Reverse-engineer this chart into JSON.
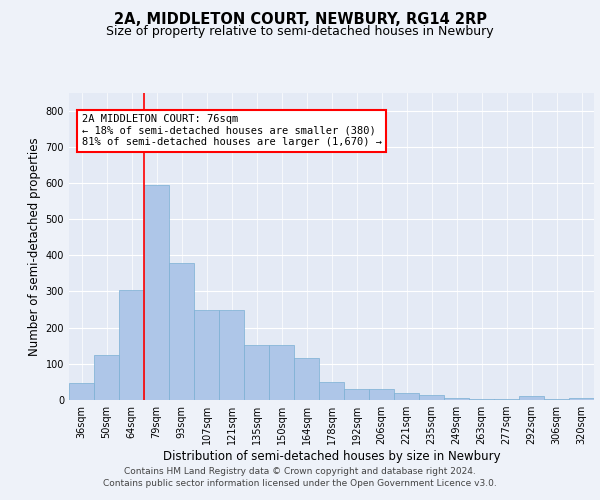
{
  "title": "2A, MIDDLETON COURT, NEWBURY, RG14 2RP",
  "subtitle": "Size of property relative to semi-detached houses in Newbury",
  "xlabel": "Distribution of semi-detached houses by size in Newbury",
  "ylabel": "Number of semi-detached properties",
  "categories": [
    "36sqm",
    "50sqm",
    "64sqm",
    "79sqm",
    "93sqm",
    "107sqm",
    "121sqm",
    "135sqm",
    "150sqm",
    "164sqm",
    "178sqm",
    "192sqm",
    "206sqm",
    "221sqm",
    "235sqm",
    "249sqm",
    "263sqm",
    "277sqm",
    "292sqm",
    "306sqm",
    "320sqm"
  ],
  "values": [
    47,
    125,
    305,
    595,
    378,
    248,
    248,
    152,
    152,
    115,
    50,
    30,
    30,
    18,
    13,
    6,
    3,
    3,
    10,
    3,
    5
  ],
  "bar_color": "#aec6e8",
  "bar_edge_color": "#7aafd4",
  "red_line_index": 3,
  "annotation_text": "2A MIDDLETON COURT: 76sqm\n← 18% of semi-detached houses are smaller (380)\n81% of semi-detached houses are larger (1,670) →",
  "footer_line1": "Contains HM Land Registry data © Crown copyright and database right 2024.",
  "footer_line2": "Contains public sector information licensed under the Open Government Licence v3.0.",
  "ylim": [
    0,
    850
  ],
  "yticks": [
    0,
    100,
    200,
    300,
    400,
    500,
    600,
    700,
    800
  ],
  "background_color": "#eef2f9",
  "plot_bg_color": "#e4eaf5",
  "grid_color": "#ffffff",
  "title_fontsize": 10.5,
  "subtitle_fontsize": 9,
  "axis_label_fontsize": 8.5,
  "tick_fontsize": 7
}
